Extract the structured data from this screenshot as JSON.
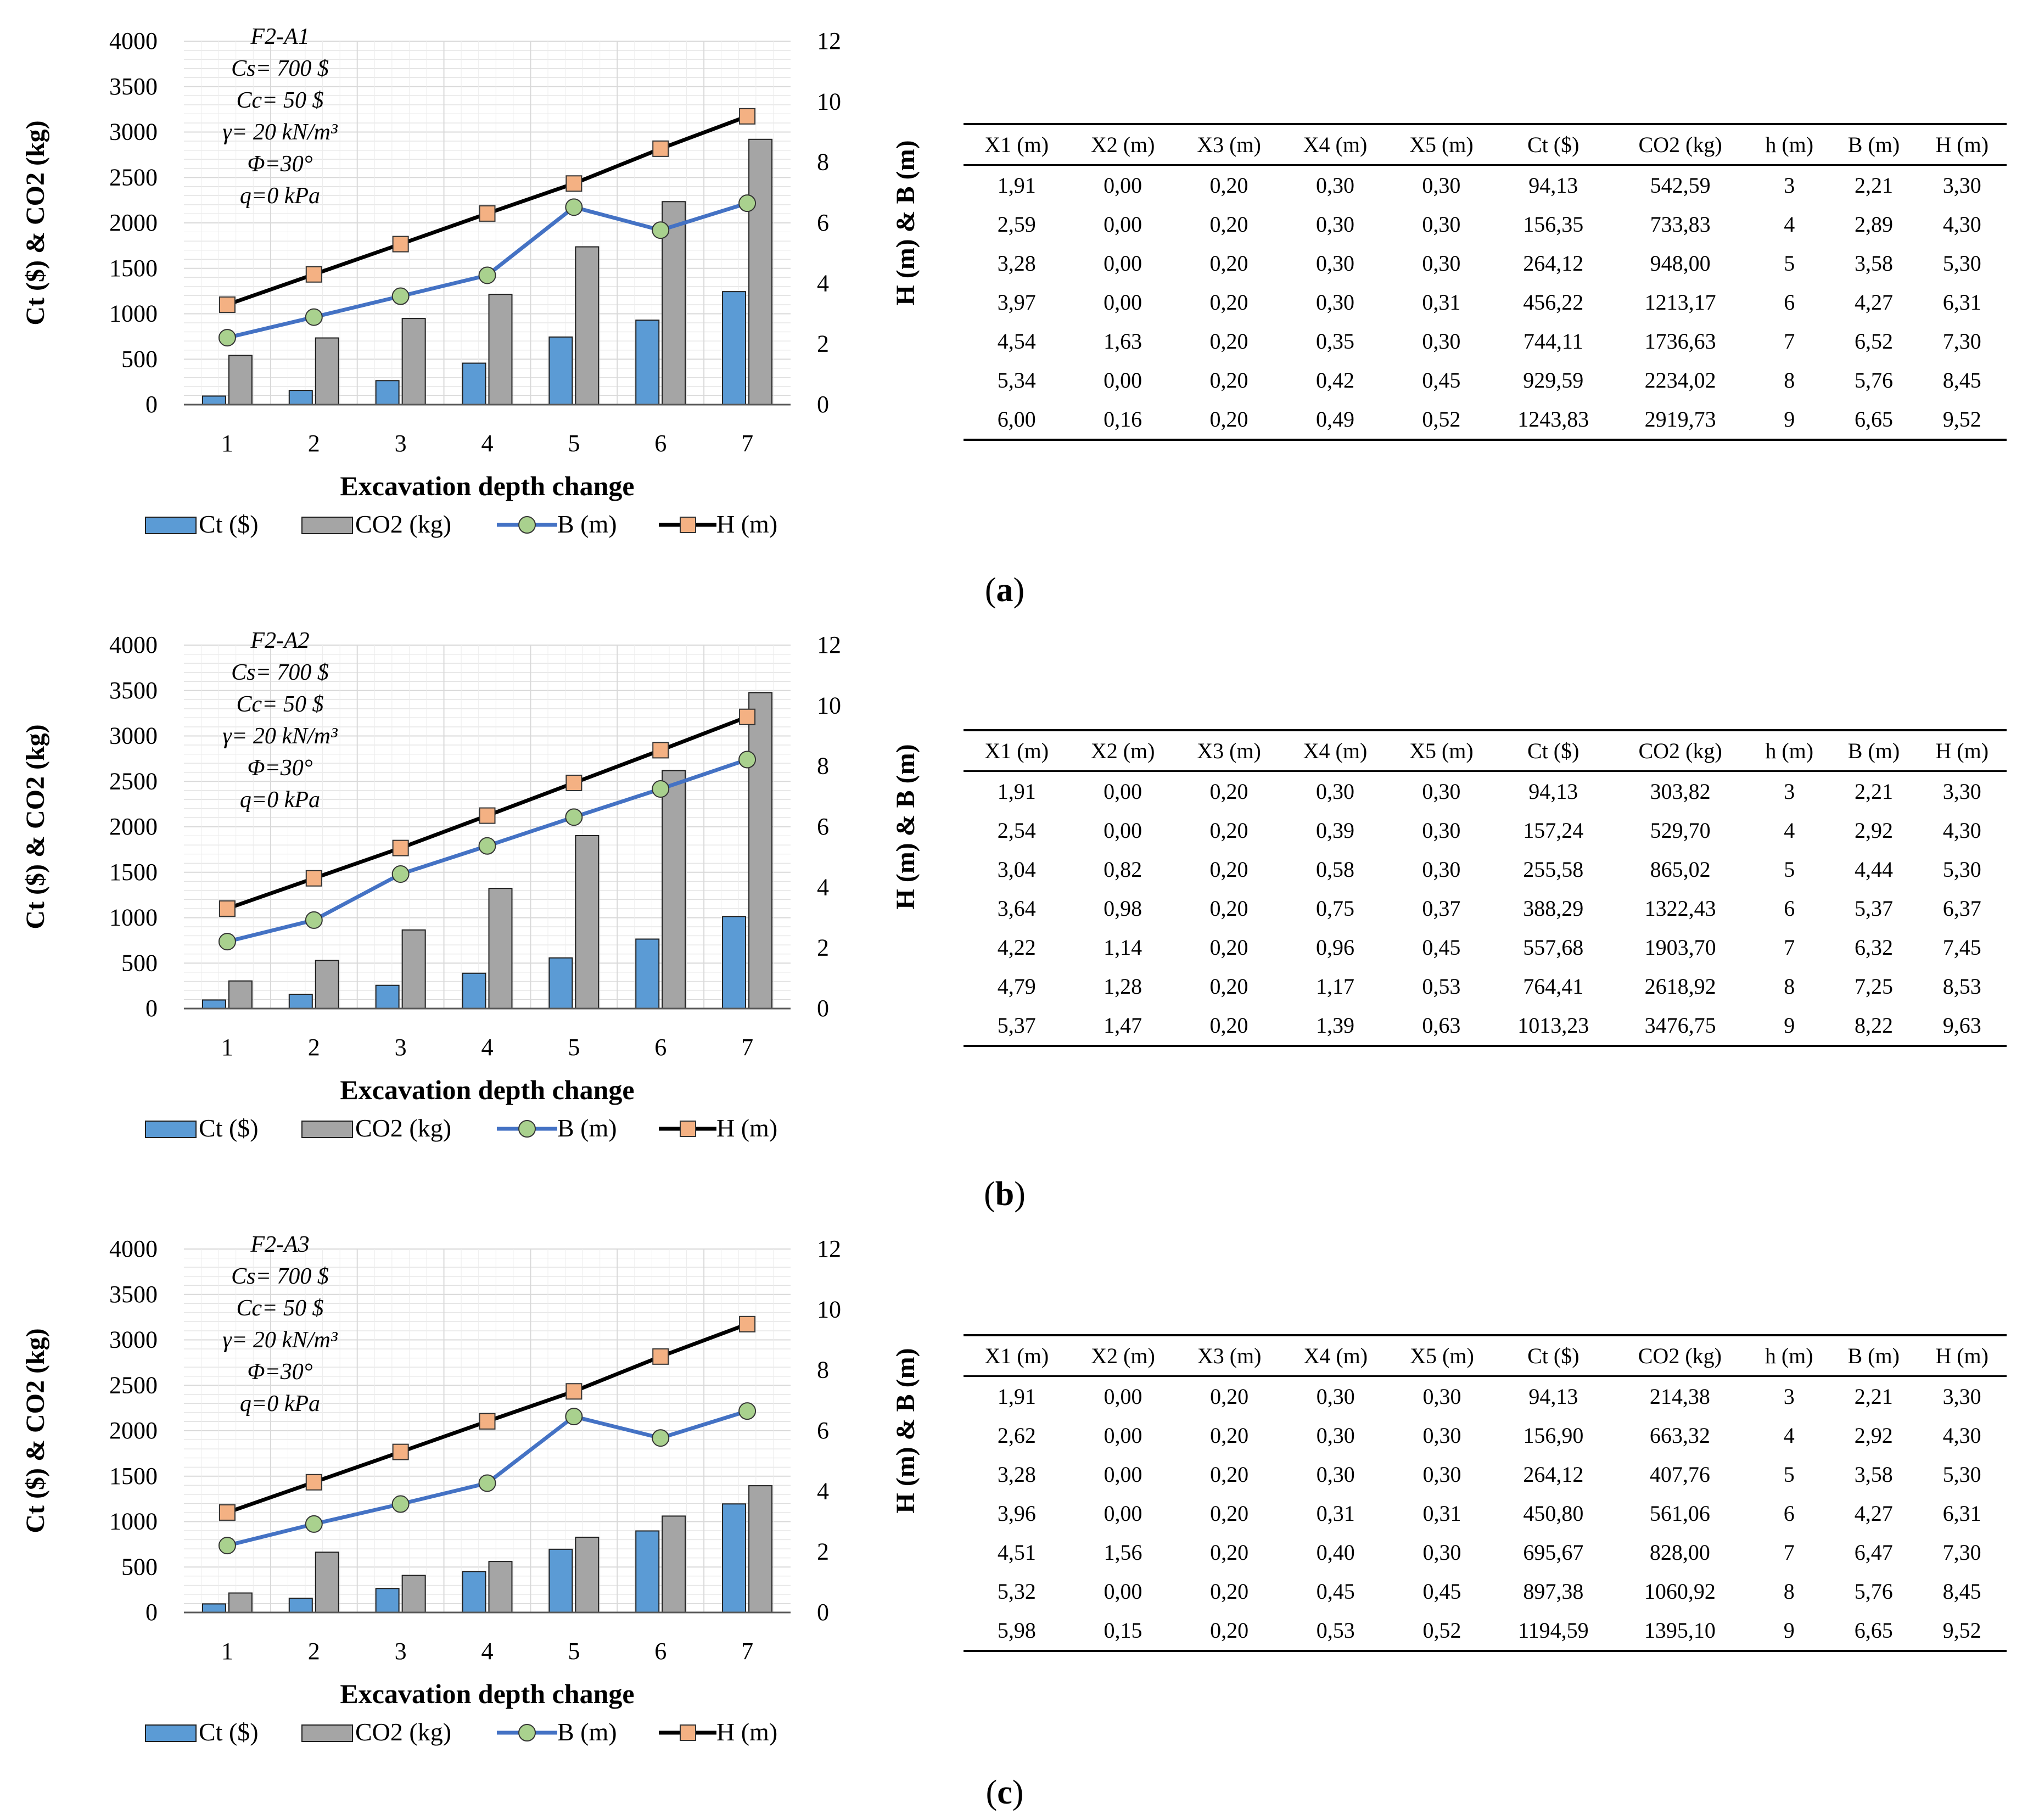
{
  "colors": {
    "ct_bar": "#5b9bd5",
    "co2_bar": "#a5a5a5",
    "b_line": "#4472c4",
    "b_marker": "#a9d18e",
    "h_line": "#000000",
    "h_marker": "#f4b183",
    "grid": "#d9d9d9"
  },
  "common": {
    "xlabel": "Excavation depth change",
    "ylabel_left": "Ct ($) & CO2 (kg)",
    "ylabel_right": "H (m) & B (m)",
    "ylim_left": [
      0,
      4000
    ],
    "ylim_right": [
      0,
      12
    ],
    "yticks_left": [
      "0",
      "500",
      "1000",
      "1500",
      "2000",
      "2500",
      "3000",
      "3500",
      "4000"
    ],
    "yticks_right": [
      "0",
      "2",
      "4",
      "6",
      "8",
      "10",
      "12"
    ],
    "legend": [
      "Ct ($)",
      "CO2 (kg)",
      "B (m)",
      "H (m)"
    ],
    "table_headers": [
      "X1 (m)",
      "X2 (m)",
      "X3 (m)",
      "X4 (m)",
      "X5 (m)",
      "Ct ($)",
      "CO2 (kg)",
      "h (m)",
      "B (m)",
      "H (m)"
    ]
  },
  "chart_data": [
    {
      "type": "bar",
      "panel_label": "a",
      "annotation": [
        "F2-A1",
        "Cs= 700 $",
        "Cc= 50 $",
        "γ= 20 kN/m³",
        "Φ=30°",
        "q=0 kPa"
      ],
      "categories": [
        "1",
        "2",
        "3",
        "4",
        "5",
        "6",
        "7"
      ],
      "series": [
        {
          "name": "Ct ($)",
          "axis": "left",
          "values": [
            94.13,
            156.35,
            264.12,
            456.22,
            744.11,
            929.59,
            1243.83
          ]
        },
        {
          "name": "CO2 (kg)",
          "axis": "left",
          "values": [
            542.59,
            733.83,
            948.0,
            1213.17,
            1736.63,
            2234.02,
            2919.73
          ]
        },
        {
          "name": "B (m)",
          "axis": "right",
          "values": [
            2.21,
            2.89,
            3.58,
            4.27,
            6.52,
            5.76,
            6.65
          ]
        },
        {
          "name": "H (m)",
          "axis": "right",
          "values": [
            3.3,
            4.3,
            5.3,
            6.31,
            7.3,
            8.45,
            9.52
          ]
        }
      ],
      "table_rows": [
        [
          "1,91",
          "0,00",
          "0,20",
          "0,30",
          "0,30",
          "94,13",
          "542,59",
          "3",
          "2,21",
          "3,30"
        ],
        [
          "2,59",
          "0,00",
          "0,20",
          "0,30",
          "0,30",
          "156,35",
          "733,83",
          "4",
          "2,89",
          "4,30"
        ],
        [
          "3,28",
          "0,00",
          "0,20",
          "0,30",
          "0,30",
          "264,12",
          "948,00",
          "5",
          "3,58",
          "5,30"
        ],
        [
          "3,97",
          "0,00",
          "0,20",
          "0,30",
          "0,31",
          "456,22",
          "1213,17",
          "6",
          "4,27",
          "6,31"
        ],
        [
          "4,54",
          "1,63",
          "0,20",
          "0,35",
          "0,30",
          "744,11",
          "1736,63",
          "7",
          "6,52",
          "7,30"
        ],
        [
          "5,34",
          "0,00",
          "0,20",
          "0,42",
          "0,45",
          "929,59",
          "2234,02",
          "8",
          "5,76",
          "8,45"
        ],
        [
          "6,00",
          "0,16",
          "0,20",
          "0,49",
          "0,52",
          "1243,83",
          "2919,73",
          "9",
          "6,65",
          "9,52"
        ]
      ]
    },
    {
      "type": "bar",
      "panel_label": "b",
      "annotation": [
        "F2-A2",
        "Cs= 700 $",
        "Cc= 50 $",
        "γ= 20 kN/m³",
        "Φ=30°",
        "q=0 kPa"
      ],
      "categories": [
        "1",
        "2",
        "3",
        "4",
        "5",
        "6",
        "7"
      ],
      "series": [
        {
          "name": "Ct ($)",
          "axis": "left",
          "values": [
            94.13,
            157.24,
            255.58,
            388.29,
            557.68,
            764.41,
            1013.23
          ]
        },
        {
          "name": "CO2 (kg)",
          "axis": "left",
          "values": [
            303.82,
            529.7,
            865.02,
            1322.43,
            1903.7,
            2618.92,
            3476.75
          ]
        },
        {
          "name": "B (m)",
          "axis": "right",
          "values": [
            2.21,
            2.92,
            4.44,
            5.37,
            6.32,
            7.25,
            8.22
          ]
        },
        {
          "name": "H (m)",
          "axis": "right",
          "values": [
            3.3,
            4.3,
            5.3,
            6.37,
            7.45,
            8.53,
            9.63
          ]
        }
      ],
      "table_rows": [
        [
          "1,91",
          "0,00",
          "0,20",
          "0,30",
          "0,30",
          "94,13",
          "303,82",
          "3",
          "2,21",
          "3,30"
        ],
        [
          "2,54",
          "0,00",
          "0,20",
          "0,39",
          "0,30",
          "157,24",
          "529,70",
          "4",
          "2,92",
          "4,30"
        ],
        [
          "3,04",
          "0,82",
          "0,20",
          "0,58",
          "0,30",
          "255,58",
          "865,02",
          "5",
          "4,44",
          "5,30"
        ],
        [
          "3,64",
          "0,98",
          "0,20",
          "0,75",
          "0,37",
          "388,29",
          "1322,43",
          "6",
          "5,37",
          "6,37"
        ],
        [
          "4,22",
          "1,14",
          "0,20",
          "0,96",
          "0,45",
          "557,68",
          "1903,70",
          "7",
          "6,32",
          "7,45"
        ],
        [
          "4,79",
          "1,28",
          "0,20",
          "1,17",
          "0,53",
          "764,41",
          "2618,92",
          "8",
          "7,25",
          "8,53"
        ],
        [
          "5,37",
          "1,47",
          "0,20",
          "1,39",
          "0,63",
          "1013,23",
          "3476,75",
          "9",
          "8,22",
          "9,63"
        ]
      ]
    },
    {
      "type": "bar",
      "panel_label": "c",
      "annotation": [
        "F2-A3",
        "Cs= 700 $",
        "Cc= 50 $",
        "γ= 20 kN/m³",
        "Φ=30°",
        "q=0 kPa"
      ],
      "categories": [
        "1",
        "2",
        "3",
        "4",
        "5",
        "6",
        "7"
      ],
      "series": [
        {
          "name": "Ct ($)",
          "axis": "left",
          "values": [
            94.13,
            156.9,
            264.12,
            450.8,
            695.67,
            897.38,
            1194.59
          ]
        },
        {
          "name": "CO2 (kg)",
          "axis": "left",
          "values": [
            214.38,
            663.32,
            407.76,
            561.06,
            828.0,
            1060.92,
            1395.1
          ]
        },
        {
          "name": "B (m)",
          "axis": "right",
          "values": [
            2.21,
            2.92,
            3.58,
            4.27,
            6.47,
            5.76,
            6.65
          ]
        },
        {
          "name": "H (m)",
          "axis": "right",
          "values": [
            3.3,
            4.3,
            5.3,
            6.31,
            7.3,
            8.45,
            9.52
          ]
        }
      ],
      "table_rows": [
        [
          "1,91",
          "0,00",
          "0,20",
          "0,30",
          "0,30",
          "94,13",
          "214,38",
          "3",
          "2,21",
          "3,30"
        ],
        [
          "2,62",
          "0,00",
          "0,20",
          "0,30",
          "0,30",
          "156,90",
          "663,32",
          "4",
          "2,92",
          "4,30"
        ],
        [
          "3,28",
          "0,00",
          "0,20",
          "0,30",
          "0,30",
          "264,12",
          "407,76",
          "5",
          "3,58",
          "5,30"
        ],
        [
          "3,96",
          "0,00",
          "0,20",
          "0,31",
          "0,31",
          "450,80",
          "561,06",
          "6",
          "4,27",
          "6,31"
        ],
        [
          "4,51",
          "1,56",
          "0,20",
          "0,40",
          "0,30",
          "695,67",
          "828,00",
          "7",
          "6,47",
          "7,30"
        ],
        [
          "5,32",
          "0,00",
          "0,20",
          "0,45",
          "0,45",
          "897,38",
          "1060,92",
          "8",
          "5,76",
          "8,45"
        ],
        [
          "5,98",
          "0,15",
          "0,20",
          "0,53",
          "0,52",
          "1194,59",
          "1395,10",
          "9",
          "6,65",
          "9,52"
        ]
      ]
    }
  ]
}
